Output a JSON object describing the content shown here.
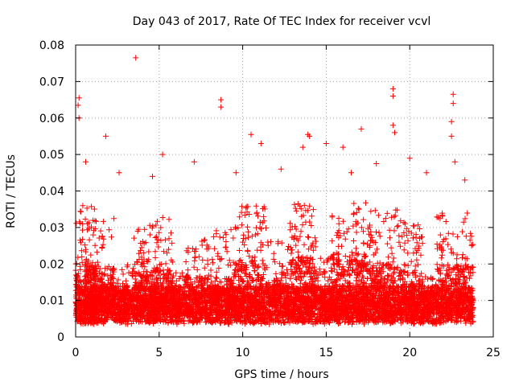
{
  "chart_data": {
    "type": "scatter",
    "title": "Day 043 of 2017, Rate Of TEC Index for receiver vcvl",
    "xlabel": "GPS time / hours",
    "ylabel": "ROTI / TECUs",
    "xlim": [
      0,
      25
    ],
    "ylim": [
      0,
      0.08
    ],
    "x_ticks": [
      0,
      5,
      10,
      15,
      20,
      25
    ],
    "x_tick_labels": [
      "0",
      "5",
      "10",
      "15",
      "20",
      "25"
    ],
    "y_ticks": [
      0,
      0.01,
      0.02,
      0.03,
      0.04,
      0.05,
      0.06,
      0.07,
      0.08
    ],
    "y_tick_labels": [
      "0",
      "0.01",
      "0.02",
      "0.03",
      "0.04",
      "0.05",
      "0.06",
      "0.07",
      "0.08"
    ],
    "grid": true,
    "marker": "plus",
    "color": "#ff0000",
    "series": [
      {
        "name": "ROTI",
        "points": [
          [
            3.6,
            0.0765
          ],
          [
            0.2,
            0.0655
          ],
          [
            0.15,
            0.0635
          ],
          [
            0.2,
            0.06
          ],
          [
            8.7,
            0.065
          ],
          [
            8.7,
            0.063
          ],
          [
            19.0,
            0.068
          ],
          [
            19.0,
            0.066
          ],
          [
            22.6,
            0.0665
          ],
          [
            22.6,
            0.064
          ],
          [
            22.5,
            0.059
          ],
          [
            22.5,
            0.055
          ],
          [
            19.0,
            0.058
          ],
          [
            19.1,
            0.056
          ],
          [
            17.1,
            0.057
          ],
          [
            10.5,
            0.0555
          ],
          [
            13.9,
            0.0555
          ],
          [
            14.0,
            0.055
          ],
          [
            1.8,
            0.055
          ],
          [
            15.0,
            0.053
          ],
          [
            11.1,
            0.053
          ],
          [
            16.0,
            0.052
          ],
          [
            5.2,
            0.05
          ],
          [
            0.6,
            0.048
          ],
          [
            2.6,
            0.045
          ],
          [
            20.0,
            0.049
          ],
          [
            18.0,
            0.0475
          ],
          [
            13.6,
            0.052
          ],
          [
            22.7,
            0.048
          ],
          [
            7.1,
            0.048
          ],
          [
            4.6,
            0.044
          ],
          [
            9.6,
            0.045
          ],
          [
            12.3,
            0.046
          ],
          [
            16.5,
            0.045
          ],
          [
            21.0,
            0.045
          ],
          [
            23.3,
            0.043
          ],
          [
            0.05,
            0.0085
          ],
          [
            0.1,
            0.0095
          ],
          [
            0.05,
            0.007
          ],
          [
            0.1,
            0.012
          ]
        ],
        "bursts": [
          {
            "t0": 0.0,
            "t1": 1.2,
            "level": 0.019,
            "peak": 0.036,
            "n": 420
          },
          {
            "t0": 1.0,
            "t1": 2.3,
            "level": 0.017,
            "peak": 0.033,
            "n": 380
          },
          {
            "t0": 2.3,
            "t1": 3.4,
            "level": 0.011,
            "peak": 0.02,
            "n": 260
          },
          {
            "t0": 3.4,
            "t1": 4.6,
            "level": 0.016,
            "peak": 0.032,
            "n": 360
          },
          {
            "t0": 4.6,
            "t1": 5.8,
            "level": 0.017,
            "peak": 0.035,
            "n": 360
          },
          {
            "t0": 5.8,
            "t1": 6.6,
            "level": 0.01,
            "peak": 0.018,
            "n": 200
          },
          {
            "t0": 6.6,
            "t1": 8.2,
            "level": 0.015,
            "peak": 0.027,
            "n": 380
          },
          {
            "t0": 8.2,
            "t1": 9.4,
            "level": 0.014,
            "peak": 0.03,
            "n": 320
          },
          {
            "t0": 9.4,
            "t1": 11.4,
            "level": 0.019,
            "peak": 0.036,
            "n": 560
          },
          {
            "t0": 11.4,
            "t1": 12.8,
            "level": 0.013,
            "peak": 0.027,
            "n": 320
          },
          {
            "t0": 12.8,
            "t1": 14.4,
            "level": 0.02,
            "peak": 0.037,
            "n": 480
          },
          {
            "t0": 14.4,
            "t1": 15.2,
            "level": 0.012,
            "peak": 0.022,
            "n": 200
          },
          {
            "t0": 15.2,
            "t1": 17.4,
            "level": 0.021,
            "peak": 0.037,
            "n": 600
          },
          {
            "t0": 17.4,
            "t1": 19.3,
            "level": 0.018,
            "peak": 0.035,
            "n": 500
          },
          {
            "t0": 19.3,
            "t1": 20.8,
            "level": 0.016,
            "peak": 0.032,
            "n": 400
          },
          {
            "t0": 20.8,
            "t1": 21.6,
            "level": 0.01,
            "peak": 0.017,
            "n": 180
          },
          {
            "t0": 21.6,
            "t1": 23.8,
            "level": 0.018,
            "peak": 0.034,
            "n": 560
          }
        ]
      }
    ]
  }
}
